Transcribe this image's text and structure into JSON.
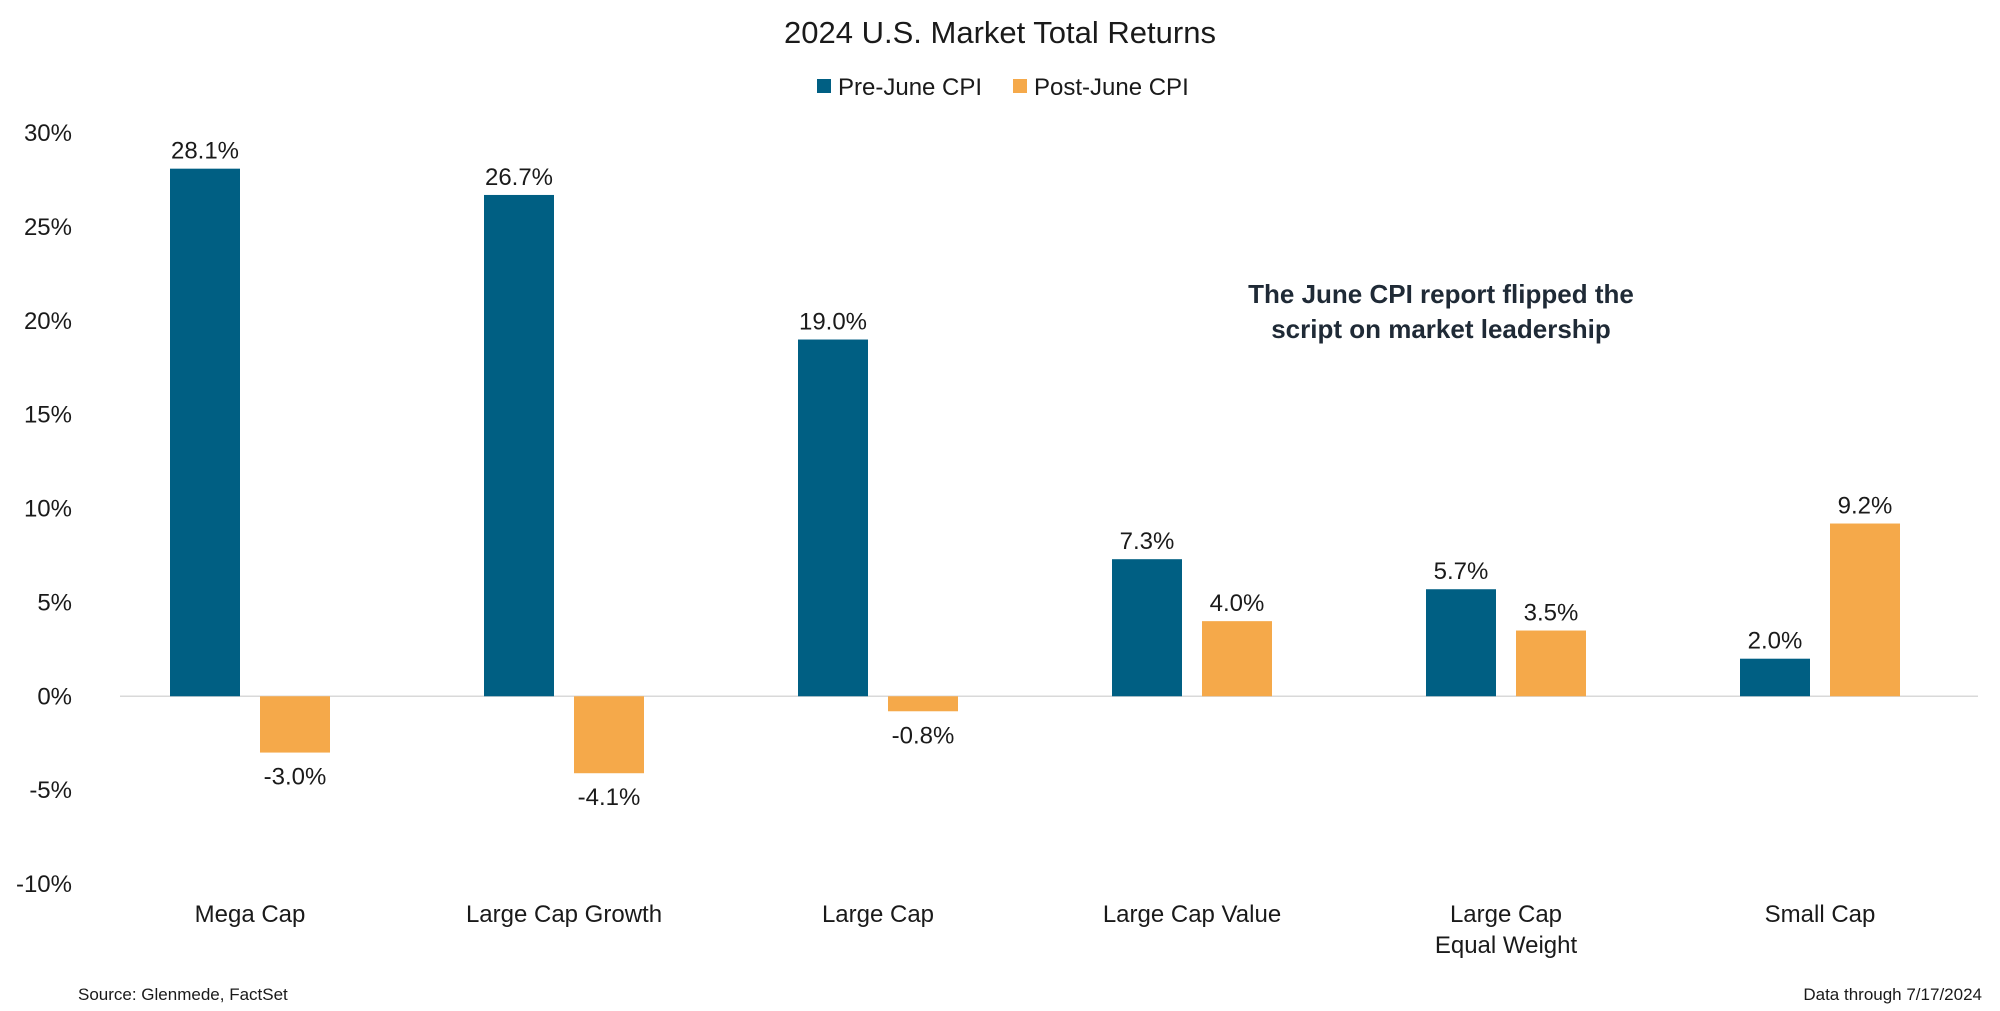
{
  "chart_data": {
    "type": "bar",
    "title": "2024 U.S. Market Total Returns",
    "categories": [
      [
        "Mega Cap"
      ],
      [
        "Large Cap Growth"
      ],
      [
        "Large Cap"
      ],
      [
        "Large Cap Value"
      ],
      [
        "Large Cap",
        "Equal Weight"
      ],
      [
        "Small Cap"
      ]
    ],
    "series": [
      {
        "name": "Pre-June CPI",
        "color": "#005f83",
        "values": [
          28.1,
          26.7,
          19.0,
          7.3,
          5.7,
          2.0
        ],
        "labels": [
          "28.1%",
          "26.7%",
          "19.0%",
          "7.3%",
          "5.7%",
          "2.0%"
        ]
      },
      {
        "name": "Post-June CPI",
        "color": "#f5a94a",
        "values": [
          -3.0,
          -4.1,
          -0.8,
          4.0,
          3.5,
          9.2
        ],
        "labels": [
          "-3.0%",
          "-4.1%",
          "-0.8%",
          "4.0%",
          "3.5%",
          "9.2%"
        ]
      }
    ],
    "ylim": [
      -10,
      30
    ],
    "yticks": [
      30,
      25,
      20,
      15,
      10,
      5,
      0,
      -5,
      -10
    ],
    "ytick_labels": [
      "30%",
      "25%",
      "20%",
      "15%",
      "10%",
      "5%",
      "0%",
      "-5%",
      "-10%"
    ],
    "legend_position": "top-center",
    "grid": false,
    "annotation": [
      "The June CPI report flipped the",
      "script on market leadership"
    ],
    "source": "Source: Glenmede, FactSet",
    "data_through": "Data through 7/17/2024"
  }
}
